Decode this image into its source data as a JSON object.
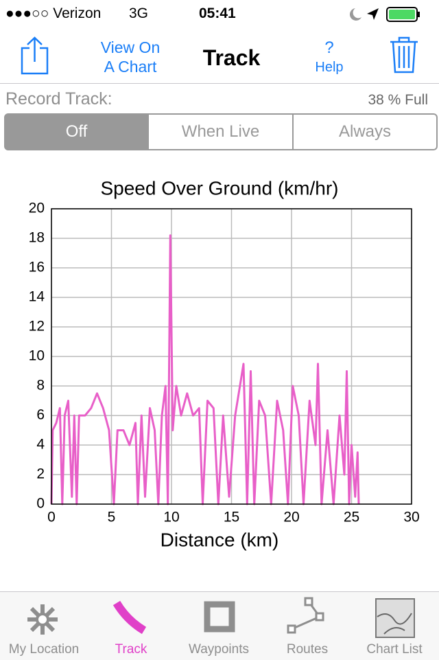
{
  "status_bar": {
    "carrier": "●●●○○ Verizon",
    "network": "3G",
    "time": "05:41"
  },
  "nav_bar": {
    "view_button": [
      "View On",
      "A Chart"
    ],
    "title": "Track",
    "help_icon": "?",
    "help_label": "Help"
  },
  "record_track": {
    "label": "Record Track:",
    "capacity": "38 % Full",
    "options": [
      "Off",
      "When Live",
      "Always"
    ]
  },
  "chart_data": {
    "type": "line",
    "title": "Speed Over Ground (km/hr)",
    "x_label": "Distance (km)",
    "color": "#e85fc8",
    "grid": true,
    "xlim": [
      0,
      30
    ],
    "xticks": [
      0,
      5,
      10,
      15,
      20,
      25,
      30
    ],
    "ylim": [
      0,
      20
    ],
    "yticks": [
      0,
      2,
      4,
      6,
      8,
      10,
      12,
      14,
      16,
      18,
      20
    ],
    "x": [
      0,
      0.1,
      0.4,
      0.7,
      0.9,
      1.1,
      1.4,
      1.7,
      1.9,
      2.1,
      2.3,
      2.8,
      3.3,
      3.8,
      4.3,
      4.8,
      5.2,
      5.5,
      6.0,
      6.5,
      7.0,
      7.2,
      7.5,
      7.8,
      8.2,
      8.6,
      8.9,
      9.2,
      9.5,
      9.7,
      9.9,
      10.1,
      10.4,
      10.8,
      11.3,
      11.8,
      12.3,
      12.6,
      13.0,
      13.5,
      13.9,
      14.3,
      14.8,
      15.3,
      15.7,
      16.0,
      16.3,
      16.6,
      16.9,
      17.3,
      17.8,
      18.3,
      18.8,
      19.3,
      19.7,
      20.1,
      20.6,
      21.0,
      21.5,
      22.0,
      22.2,
      22.5,
      23.0,
      23.5,
      24.0,
      24.4,
      24.6,
      24.8,
      25.0,
      25.3,
      25.5,
      25.6
    ],
    "values": [
      0,
      5,
      5.5,
      6.5,
      0,
      6,
      7,
      0.5,
      6,
      0,
      6,
      6,
      6.5,
      7.5,
      6.5,
      5,
      0,
      5,
      5,
      4,
      5.5,
      0,
      6,
      0.5,
      6.5,
      5,
      0,
      6,
      8,
      0,
      18.2,
      5,
      8,
      6,
      7.5,
      6,
      6.5,
      0,
      7,
      6.5,
      0,
      6,
      0.5,
      6,
      8,
      9.5,
      0,
      9,
      0,
      7,
      6,
      0,
      7,
      5,
      0,
      8,
      6,
      0,
      7,
      4,
      9.5,
      0,
      5,
      0,
      6,
      2,
      9,
      0,
      4,
      0.5,
      3.5,
      0
    ]
  },
  "tab_bar": [
    "My Location",
    "Track",
    "Waypoints",
    "Routes",
    "Chart List"
  ]
}
